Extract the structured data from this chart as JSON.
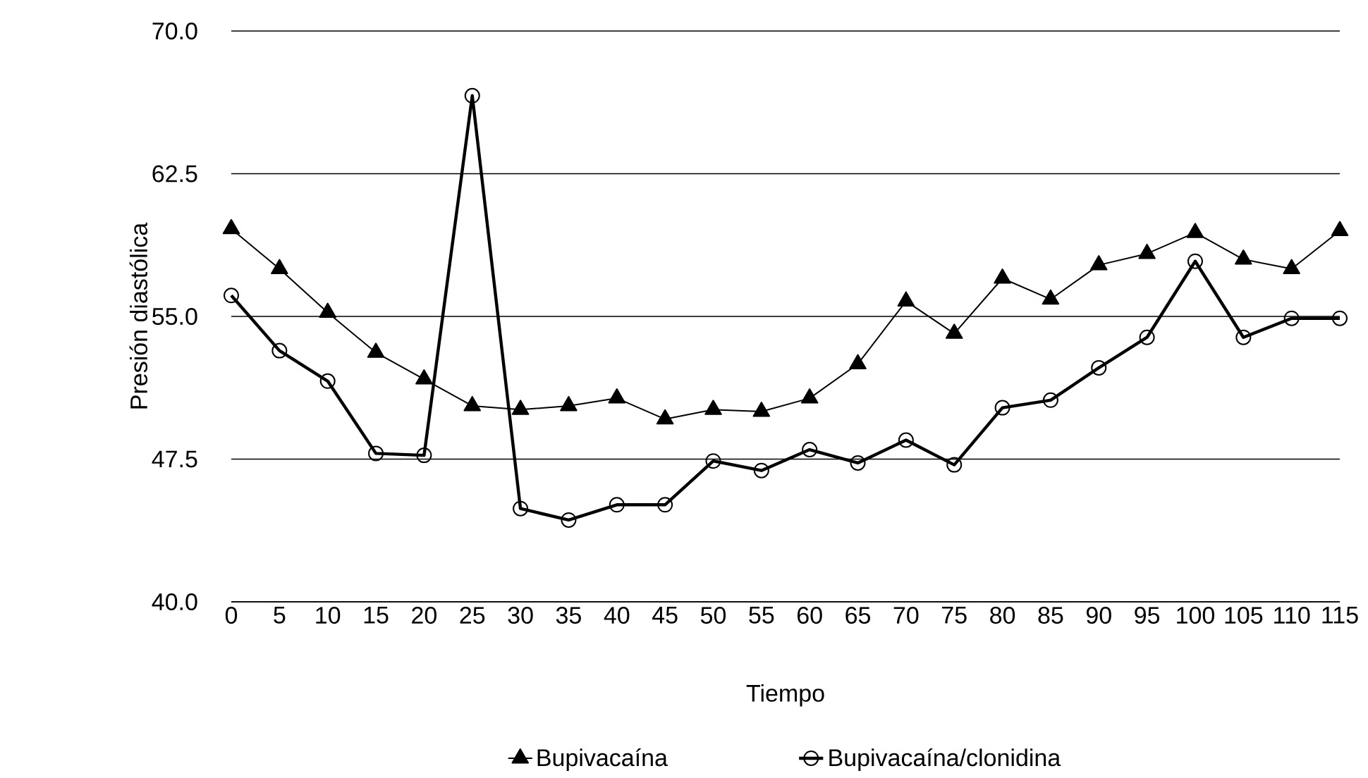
{
  "chart_data": {
    "type": "line",
    "xlabel": "Tiempo",
    "ylabel": "Presión diastólica",
    "categories": [
      "0",
      "5",
      "10",
      "15",
      "20",
      "25",
      "30",
      "35",
      "40",
      "45",
      "50",
      "55",
      "60",
      "65",
      "70",
      "75",
      "80",
      "85",
      "90",
      "95",
      "100",
      "105",
      "110",
      "115"
    ],
    "series": [
      {
        "name": "Bupivacaína",
        "color": "#000000",
        "marker": "triangle",
        "values": [
          59.6,
          57.5,
          55.2,
          53.1,
          51.7,
          50.3,
          50.1,
          50.3,
          50.7,
          49.6,
          50.1,
          50.0,
          50.7,
          52.5,
          55.8,
          54.1,
          57.0,
          55.9,
          57.7,
          58.3,
          59.4,
          58.0,
          57.5,
          59.5
        ]
      },
      {
        "name": "Bupivacaína/clonidina",
        "color": "#000000",
        "marker": "circle",
        "values": [
          56.1,
          53.2,
          51.6,
          47.8,
          47.7,
          66.6,
          44.9,
          44.3,
          45.1,
          45.1,
          47.4,
          46.9,
          48.0,
          47.3,
          48.5,
          47.2,
          50.2,
          50.6,
          52.3,
          53.9,
          57.9,
          53.9,
          54.9,
          54.9
        ]
      }
    ],
    "ylim": [
      40,
      70
    ],
    "yticks": [
      {
        "value": 40,
        "label": "40.0"
      },
      {
        "value": 47.5,
        "label": "47.5"
      },
      {
        "value": 55,
        "label": "55.0"
      },
      {
        "value": 62.5,
        "label": "62.5"
      },
      {
        "value": 70,
        "label": "70.0"
      }
    ],
    "grid": "y",
    "legend": "bottom",
    "line_style": "solid"
  }
}
